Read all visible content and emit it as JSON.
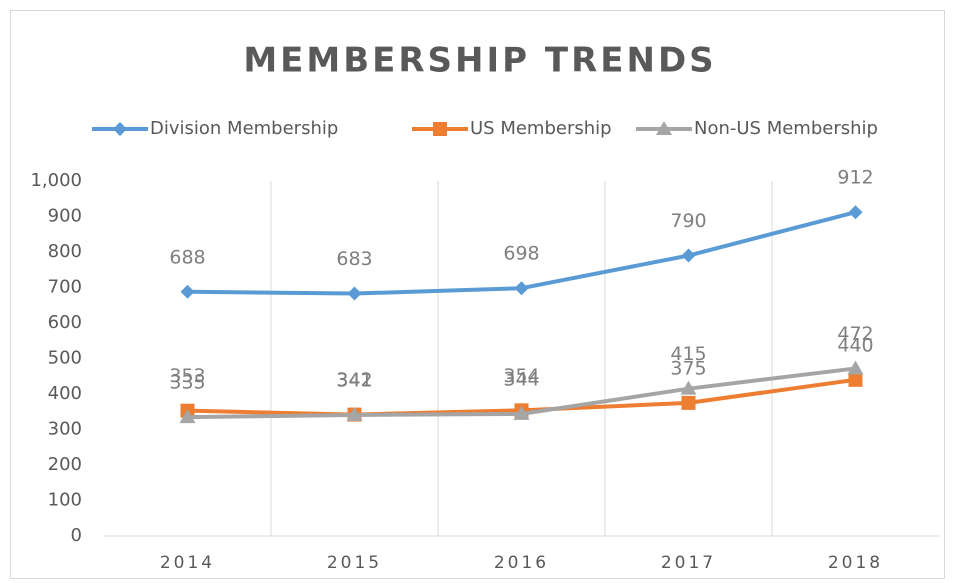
{
  "chart_data": {
    "type": "line",
    "title": "MEMBERSHIP TRENDS",
    "categories": [
      "2014",
      "2015",
      "2016",
      "2017",
      "2018"
    ],
    "series": [
      {
        "name": "Division Membership",
        "color": "#5b9bd5",
        "marker": "diamond",
        "values": [
          688,
          683,
          698,
          790,
          912
        ]
      },
      {
        "name": "US Membership",
        "color": "#ed7d31",
        "marker": "square",
        "values": [
          353,
          342,
          354,
          375,
          440
        ]
      },
      {
        "name": "Non-US Membership",
        "color": "#a5a5a5",
        "marker": "triangle",
        "values": [
          335,
          341,
          344,
          415,
          472
        ]
      }
    ],
    "ylim": [
      0,
      1000
    ],
    "yticks": [
      0,
      100,
      200,
      300,
      400,
      500,
      600,
      700,
      800,
      900,
      {
        "value": 1000,
        "label": "1,000"
      }
    ],
    "grid": "vertical",
    "legend": "top"
  }
}
